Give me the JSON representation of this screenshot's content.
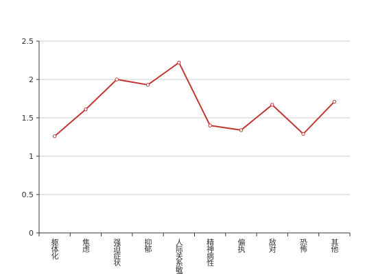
{
  "chart_data": {
    "type": "line",
    "categories": [
      "躯体化",
      "焦虑",
      "强迫症状",
      "抑郁",
      "人际关系敏感",
      "精神病性",
      "偏执",
      "敌对",
      "恐怖",
      "其他"
    ],
    "values": [
      1.26,
      1.61,
      2.0,
      1.93,
      2.22,
      1.4,
      1.34,
      1.67,
      1.29,
      1.71
    ],
    "color": "#c23531",
    "ylim": [
      0,
      2.5
    ],
    "yticks": [
      0,
      0.5,
      1,
      1.5,
      2,
      2.5
    ],
    "grid": true
  }
}
